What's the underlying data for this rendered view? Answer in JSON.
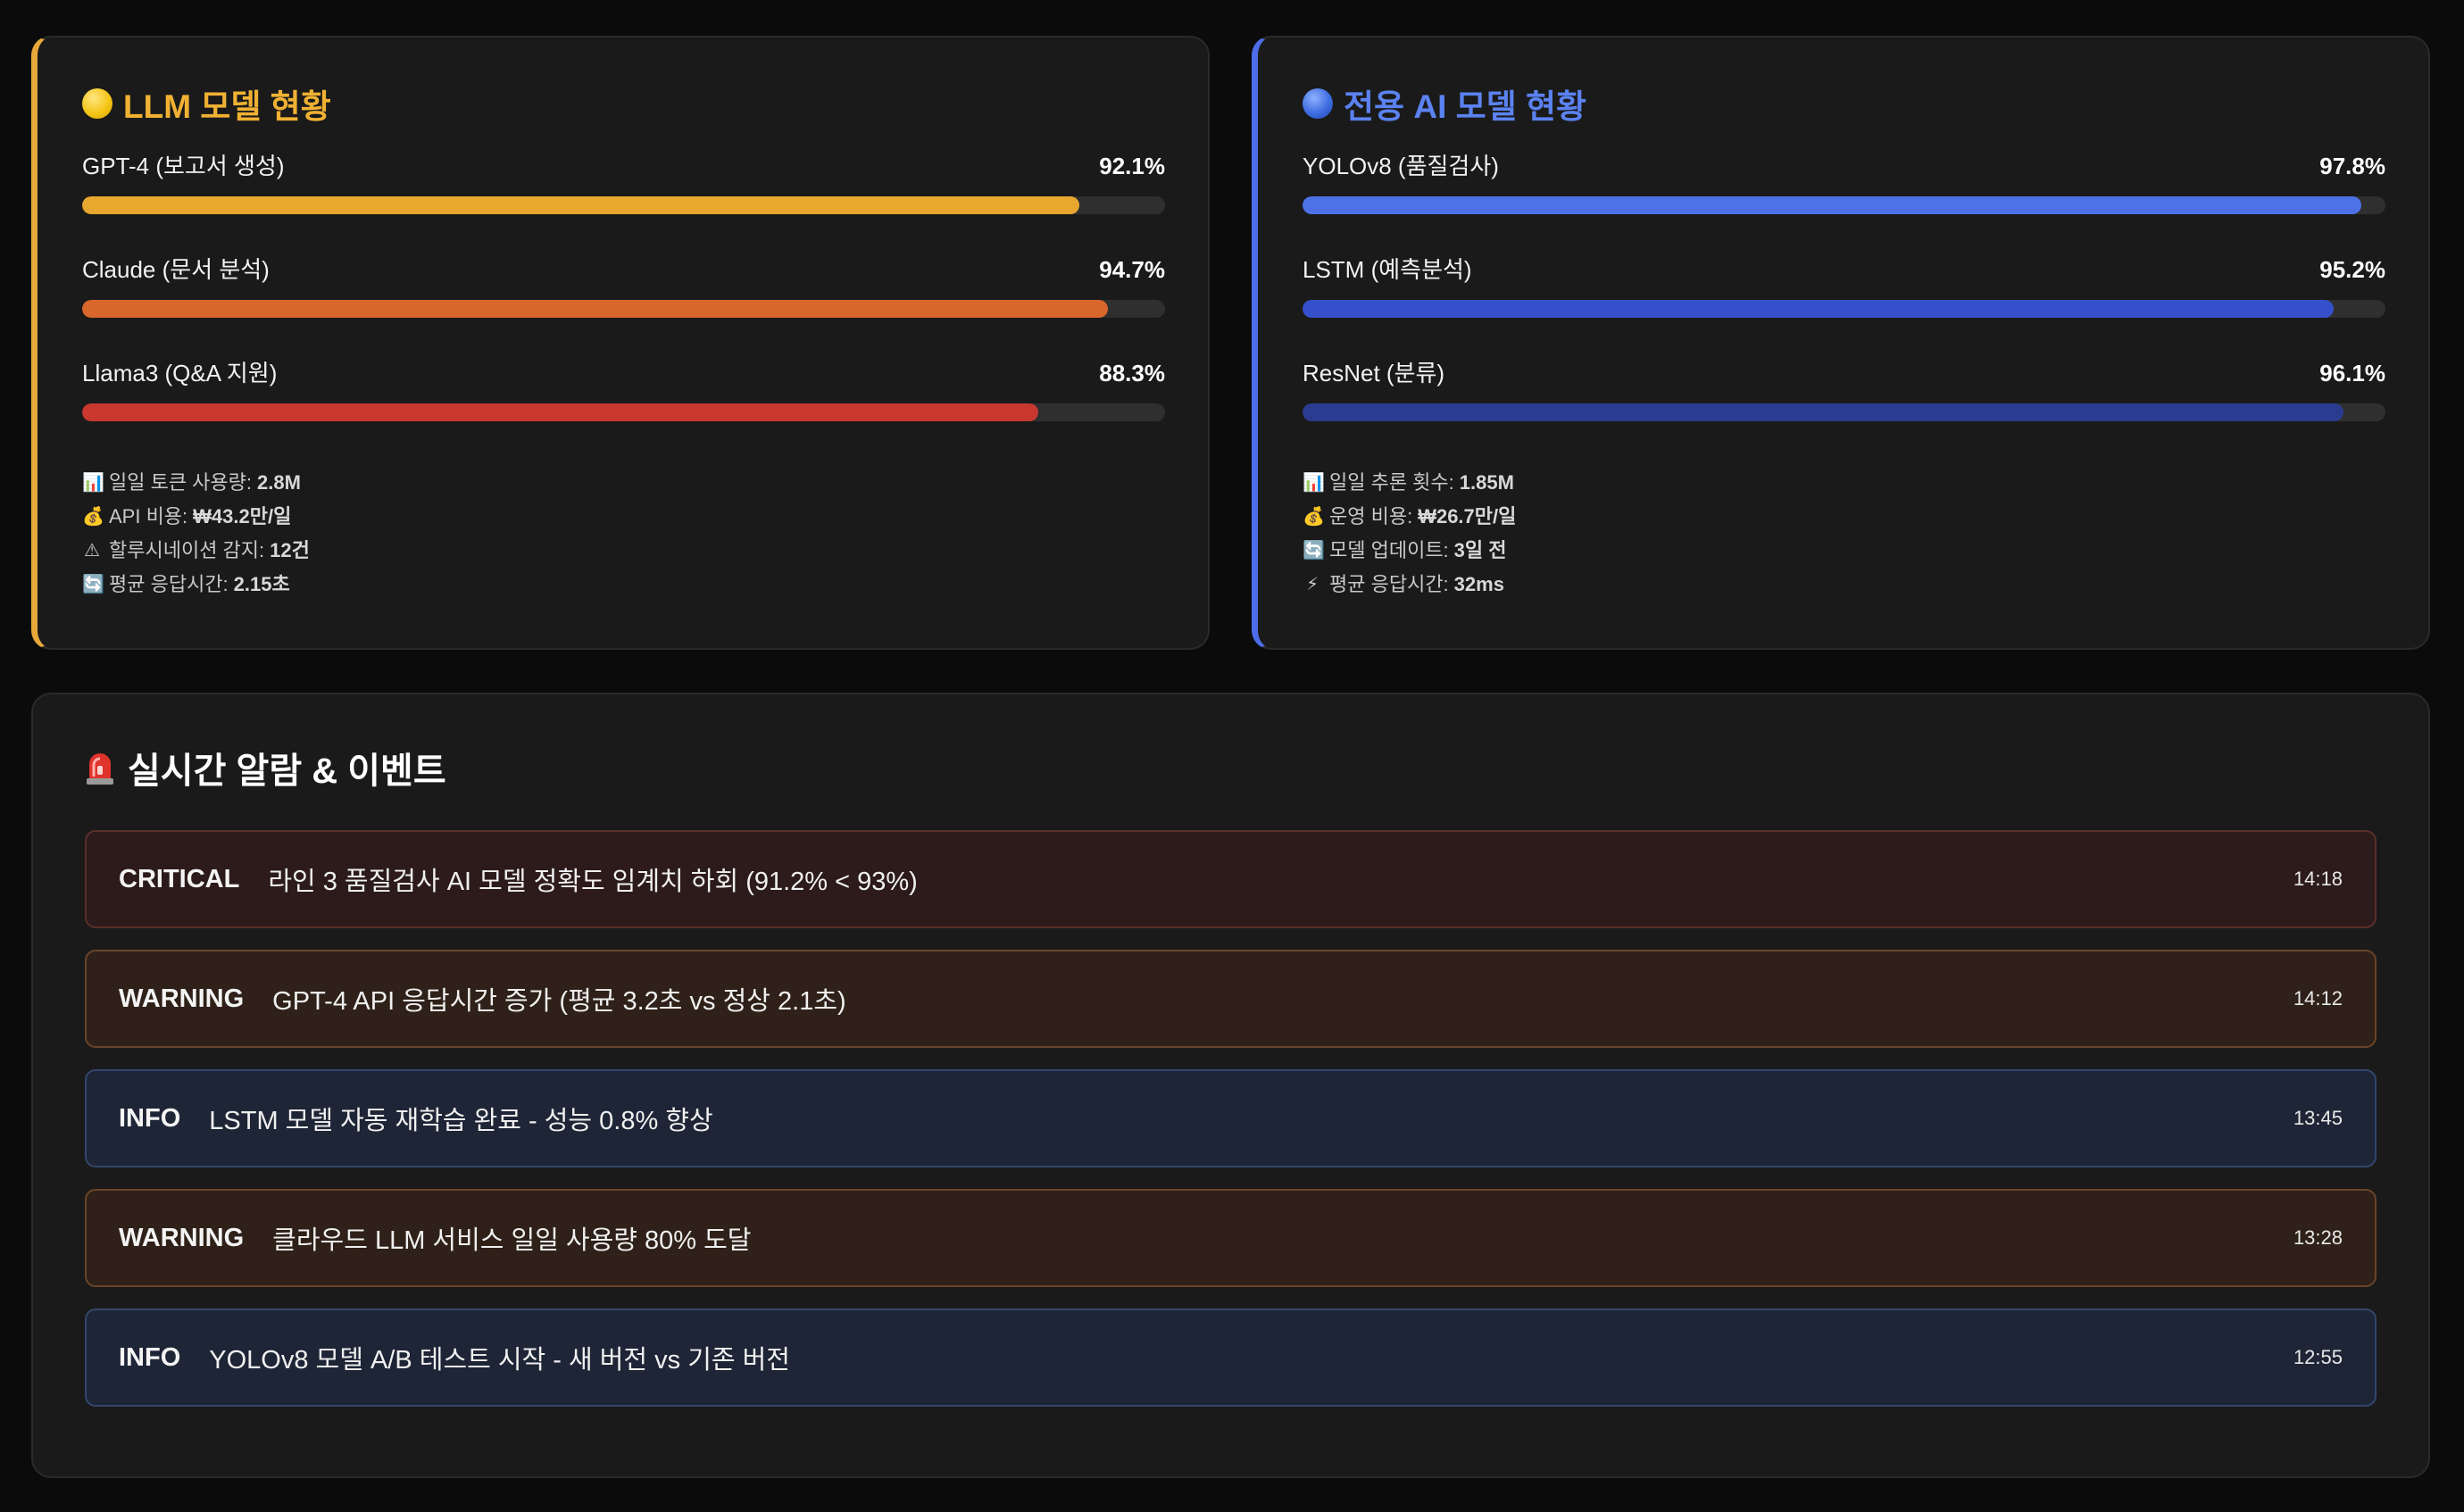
{
  "colors": {
    "llm_accent": "#f0b133",
    "ai_accent": "#5b82f0",
    "critical_bg": "#2d1b1b",
    "warning_bg": "#2f2119",
    "info_bg": "#1e2536"
  },
  "llm": {
    "title": "LLM 모델 현황",
    "icon": "yellow-circle-icon",
    "models": [
      {
        "name": "GPT-4 (보고서 생성)",
        "pct_label": "92.1%",
        "value": 92.1,
        "color": "#e8a72e"
      },
      {
        "name": "Claude (문서 분석)",
        "pct_label": "94.7%",
        "value": 94.7,
        "color": "#d9662a"
      },
      {
        "name": "Llama3 (Q&A 지원)",
        "pct_label": "88.3%",
        "value": 88.3,
        "color": "#c8382f"
      }
    ],
    "stats": [
      {
        "icon": "📊",
        "icon_name": "chart-icon",
        "label": "일일 토큰 사용량:",
        "value": "2.8M"
      },
      {
        "icon": "💰",
        "icon_name": "money-bag-icon",
        "label": "API 비용:",
        "value": "₩43.2만/일"
      },
      {
        "icon": "⚠",
        "icon_name": "warning-icon",
        "label": "할루시네이션 감지:",
        "value": "12건"
      },
      {
        "icon": "🔄",
        "icon_name": "refresh-icon",
        "label": "평균 응답시간:",
        "value": "2.15초"
      }
    ]
  },
  "ai": {
    "title": "전용 AI 모델 현황",
    "icon": "blue-circle-icon",
    "models": [
      {
        "name": "YOLOv8 (품질검사)",
        "pct_label": "97.8%",
        "value": 97.8,
        "color": "#4d72e8"
      },
      {
        "name": "LSTM (예측분석)",
        "pct_label": "95.2%",
        "value": 95.2,
        "color": "#3650cc"
      },
      {
        "name": "ResNet (분류)",
        "pct_label": "96.1%",
        "value": 96.1,
        "color": "#2b3b8f"
      }
    ],
    "stats": [
      {
        "icon": "📊",
        "icon_name": "chart-icon",
        "label": "일일 추론 횟수:",
        "value": "1.85M"
      },
      {
        "icon": "💰",
        "icon_name": "money-bag-icon",
        "label": "운영 비용:",
        "value": "₩26.7만/일"
      },
      {
        "icon": "🔄",
        "icon_name": "refresh-icon",
        "label": "모델 업데이트:",
        "value": "3일 전"
      },
      {
        "icon": "⚡",
        "icon_name": "lightning-icon",
        "label": "평균 응답시간:",
        "value": "32ms"
      }
    ]
  },
  "alerts": {
    "title": "실시간 알람 & 이벤트",
    "icon": "siren-icon",
    "items": [
      {
        "level": "CRITICAL",
        "type": "critical",
        "message": "라인 3 품질검사 AI 모델 정확도 임계치 하회 (91.2% < 93%)",
        "time": "14:18"
      },
      {
        "level": "WARNING",
        "type": "warning",
        "message": "GPT-4 API 응답시간 증가 (평균 3.2초 vs 정상 2.1초)",
        "time": "14:12"
      },
      {
        "level": "INFO",
        "type": "info",
        "message": "LSTM 모델 자동 재학습 완료 - 성능 0.8% 향상",
        "time": "13:45"
      },
      {
        "level": "WARNING",
        "type": "warning",
        "message": "클라우드 LLM 서비스 일일 사용량 80% 도달",
        "time": "13:28"
      },
      {
        "level": "INFO",
        "type": "info",
        "message": "YOLOv8 모델 A/B 테스트 시작 - 새 버전 vs 기존 버전",
        "time": "12:55"
      }
    ]
  }
}
